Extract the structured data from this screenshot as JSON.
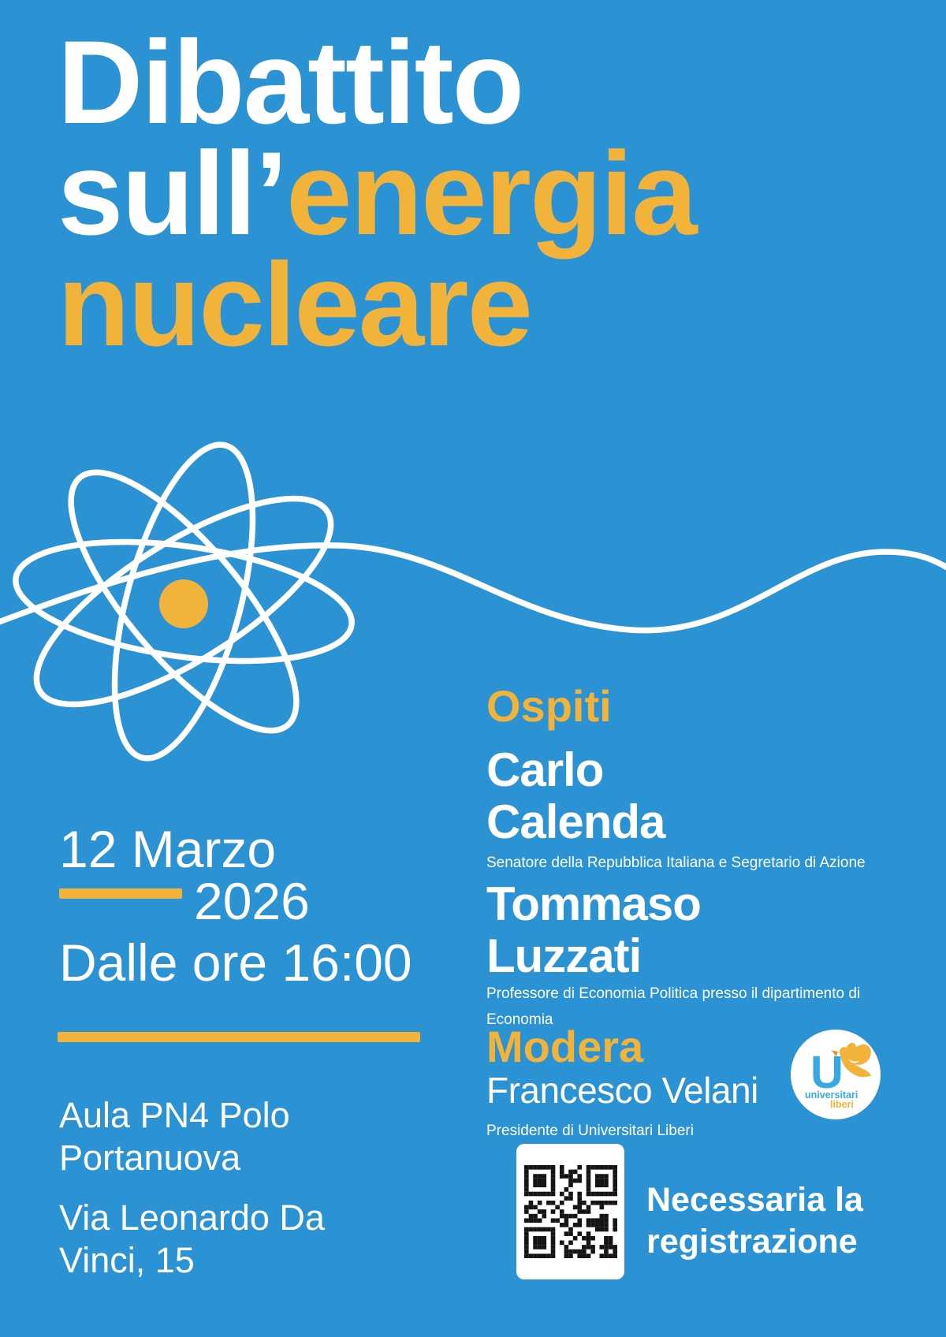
{
  "colors": {
    "background": "#2B92D4",
    "yellow": "#F2B33B",
    "white": "#FFFFFF",
    "logo_blue": "#36A9E1",
    "qr_black": "#141414"
  },
  "title": {
    "line1": "Dibattito",
    "line2_white": "sull’",
    "line2_yellow": "energia",
    "line3": "nucleare"
  },
  "schedule": {
    "date_line": "12 Marzo",
    "year": "2026",
    "time_line": "Dalle ore 16:00"
  },
  "venue": {
    "line1": "Aula PN4 Polo Portanuova",
    "line2": "Via Leonardo Da Vinci, 15"
  },
  "guests_section": {
    "heading": "Ospiti",
    "guests": [
      {
        "first": "Carlo",
        "last": "Calenda",
        "role_lines": [
          "Senatore della Repubblica Italiana e Segretario di Azione",
          ""
        ]
      },
      {
        "first": "Tommaso",
        "last": "Luzzati",
        "role_lines": [
          "Professore di Economia Politica presso il dipartimento di",
          "Economia"
        ]
      }
    ]
  },
  "moderator_section": {
    "heading": "Modera",
    "name": "Francesco Velani",
    "role": "Presidente di Universitari Liberi"
  },
  "logo": {
    "letter": "U",
    "text_line1": "universitari",
    "text_line2": "liberi"
  },
  "registration": {
    "line1": "Necessaria la",
    "line2": "registrazione"
  }
}
